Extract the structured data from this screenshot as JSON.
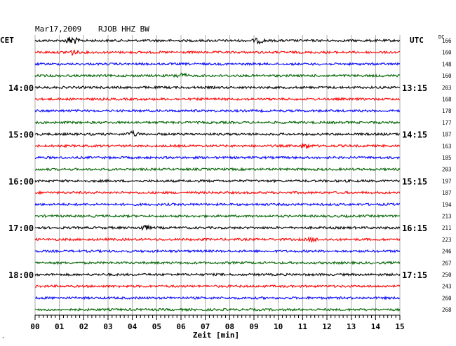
{
  "header": {
    "date": "Mar17,2009",
    "station": "RJOB HHZ BW",
    "left_zone": "CET",
    "right_zone": "UTC",
    "dc_label": "DC"
  },
  "chart_data": {
    "type": "line",
    "title": "Mar17,2009   RJOB HHZ BW",
    "xlabel": "Zeit [min]",
    "xlim": [
      0,
      15
    ],
    "x_ticks": [
      "00",
      "01",
      "02",
      "03",
      "04",
      "05",
      "06",
      "07",
      "08",
      "09",
      "10",
      "11",
      "12",
      "13",
      "14",
      "15"
    ],
    "left_hour_labels": [
      {
        "row": 4,
        "label": "14:00"
      },
      {
        "row": 8,
        "label": "15:00"
      },
      {
        "row": 12,
        "label": "16:00"
      },
      {
        "row": 16,
        "label": "17:00"
      },
      {
        "row": 20,
        "label": "18:00"
      }
    ],
    "right_hour_labels": [
      {
        "row": 4,
        "label": "13:15"
      },
      {
        "row": 8,
        "label": "14:15"
      },
      {
        "row": 12,
        "label": "15:15"
      },
      {
        "row": 16,
        "label": "16:15"
      },
      {
        "row": 20,
        "label": "17:15"
      }
    ],
    "trace_colors": [
      "#000000",
      "#ff0000",
      "#0000ff",
      "#006400"
    ],
    "dc_offsets": [
      "166",
      "160",
      "148",
      "160",
      "203",
      "168",
      "178",
      "177",
      "187",
      "163",
      "185",
      "203",
      "197",
      "187",
      "194",
      "213",
      "211",
      "223",
      "246",
      "267",
      "250",
      "243",
      "260",
      "268"
    ],
    "events": [
      {
        "row": 0,
        "minute": 1.5,
        "amplitude": 4
      },
      {
        "row": 1,
        "minute": 1.5,
        "amplitude": 2
      },
      {
        "row": 0,
        "minute": 9.2,
        "amplitude": 2
      },
      {
        "row": 3,
        "minute": 6.0,
        "amplitude": 2
      },
      {
        "row": 8,
        "minute": 4.0,
        "amplitude": 2
      },
      {
        "row": 9,
        "minute": 11.1,
        "amplitude": 2
      },
      {
        "row": 16,
        "minute": 4.5,
        "amplitude": 2
      },
      {
        "row": 17,
        "minute": 11.4,
        "amplitude": 1.5
      }
    ],
    "grid": true
  }
}
